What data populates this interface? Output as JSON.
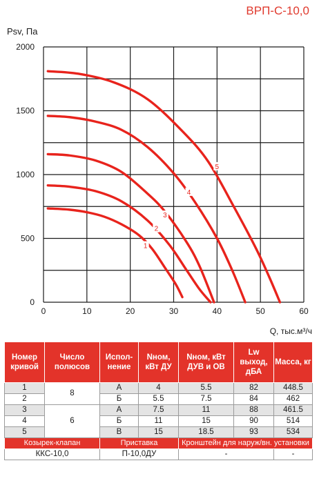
{
  "title": "ВРП-С-10,0",
  "chart_data": {
    "type": "line",
    "ylabel": "Psv, Па",
    "xlabel": "Q, тыс.м³/ч",
    "xlim": [
      0,
      60
    ],
    "ylim": [
      0,
      2000
    ],
    "x_ticks": [
      "0",
      "10",
      "20",
      "30",
      "40",
      "50",
      "60"
    ],
    "y_ticks": [
      "0",
      "500",
      "1000",
      "1500",
      "2000"
    ],
    "grid": true,
    "series": [
      {
        "name": "1",
        "points": [
          [
            1,
            735
          ],
          [
            6,
            725
          ],
          [
            10,
            705
          ],
          [
            14,
            670
          ],
          [
            18,
            610
          ],
          [
            22,
            525
          ],
          [
            25,
            420
          ],
          [
            28,
            270
          ],
          [
            30.5,
            140
          ],
          [
            32,
            40
          ]
        ],
        "label_at": [
          23.5,
          440
        ]
      },
      {
        "name": "2",
        "points": [
          [
            1,
            915
          ],
          [
            6,
            905
          ],
          [
            12,
            870
          ],
          [
            18,
            790
          ],
          [
            24,
            640
          ],
          [
            29,
            450
          ],
          [
            33,
            250
          ],
          [
            36,
            100
          ],
          [
            38.5,
            0
          ]
        ],
        "label_at": [
          26,
          575
        ]
      },
      {
        "name": "3",
        "points": [
          [
            1,
            1160
          ],
          [
            6,
            1150
          ],
          [
            12,
            1110
          ],
          [
            18,
            1020
          ],
          [
            24,
            850
          ],
          [
            28,
            710
          ],
          [
            33,
            470
          ],
          [
            36,
            280
          ],
          [
            39.3,
            0
          ]
        ],
        "label_at": [
          28,
          680
        ]
      },
      {
        "name": "4",
        "points": [
          [
            1,
            1460
          ],
          [
            6,
            1450
          ],
          [
            12,
            1415
          ],
          [
            18,
            1350
          ],
          [
            24,
            1215
          ],
          [
            30,
            1010
          ],
          [
            35,
            780
          ],
          [
            40,
            500
          ],
          [
            43.5,
            250
          ],
          [
            46.5,
            0
          ]
        ],
        "label_at": [
          33.5,
          860
        ]
      },
      {
        "name": "5",
        "points": [
          [
            1,
            1810
          ],
          [
            8,
            1790
          ],
          [
            16,
            1725
          ],
          [
            24,
            1590
          ],
          [
            32,
            1340
          ],
          [
            38,
            1100
          ],
          [
            44,
            740
          ],
          [
            49,
            420
          ],
          [
            52,
            200
          ],
          [
            54.5,
            0
          ]
        ],
        "label_at": [
          40,
          1060
        ]
      }
    ]
  },
  "table": {
    "headers": [
      "Номер кривой",
      "Число полюсов",
      "Испол-нение",
      "Nном, кВт ДУ",
      "Nном, кВт ДУВ и ОВ",
      "Lw выход, дБА",
      "Масса, кг"
    ],
    "poles_8": "8",
    "poles_6": "6",
    "rows": [
      {
        "curve": "1",
        "version": "А",
        "n_du": "4",
        "n_duv": "5.5",
        "lw": "82",
        "mass": "448.5"
      },
      {
        "curve": "2",
        "version": "Б",
        "n_du": "5.5",
        "n_duv": "7.5",
        "lw": "84",
        "mass": "462"
      },
      {
        "curve": "3",
        "version": "А",
        "n_du": "7.5",
        "n_duv": "11",
        "lw": "88",
        "mass": "461.5"
      },
      {
        "curve": "4",
        "version": "Б",
        "n_du": "11",
        "n_duv": "15",
        "lw": "90",
        "mass": "514"
      },
      {
        "curve": "5",
        "version": "В",
        "n_du": "15",
        "n_duv": "18.5",
        "lw": "93",
        "mass": "534"
      }
    ],
    "accessories": {
      "headers": [
        "Козырек-клапан",
        "Приставка",
        "Кронштейн для наруж/вн. установки"
      ],
      "values": [
        "ККС-10,0",
        "П-10,0ДУ",
        "-",
        "-"
      ]
    }
  },
  "colors": {
    "accent": "#e3332a",
    "curve": "#e8231c",
    "grid": "#1a1a1a"
  }
}
